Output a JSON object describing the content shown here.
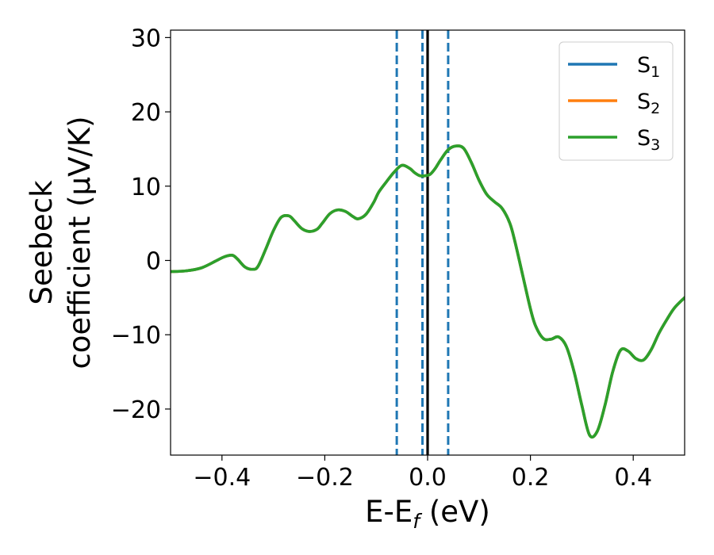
{
  "chart_data": {
    "type": "line",
    "xlabel_main": "E-E",
    "xlabel_sub": "f",
    "xlabel_unit": " (eV)",
    "ylabel_line1": "Seebeck",
    "ylabel_line2": "coefficient  (μV/K)",
    "xlim": [
      -0.5,
      0.5
    ],
    "ylim": [
      -26.2,
      31.0
    ],
    "xticks": [
      -0.4,
      -0.2,
      0.0,
      0.2,
      0.4
    ],
    "xtick_labels": [
      "−0.4",
      "−0.2",
      "0.0",
      "0.2",
      "0.4"
    ],
    "yticks": [
      -20,
      -10,
      0,
      10,
      20,
      30
    ],
    "ytick_labels": [
      "−20",
      "−10",
      "0",
      "10",
      "20",
      "30"
    ],
    "grid": false,
    "legend_position": "top-right",
    "vlines": [
      {
        "x": -0.06,
        "style": "dashed",
        "color": "#1f77b4"
      },
      {
        "x": -0.01,
        "style": "dashed",
        "color": "#1f77b4"
      },
      {
        "x": 0.04,
        "style": "dashed",
        "color": "#1f77b4"
      },
      {
        "x": 0.0,
        "style": "solid",
        "color": "#000000"
      }
    ],
    "series": [
      {
        "name": "S",
        "subscript": "1",
        "color": "#1f77b4"
      },
      {
        "name": "S",
        "subscript": "2",
        "color": "#ff7f0e"
      },
      {
        "name": "S",
        "subscript": "3",
        "color": "#2ca02c"
      }
    ],
    "x": [
      -0.5,
      -0.47,
      -0.44,
      -0.41,
      -0.395,
      -0.38,
      -0.37,
      -0.355,
      -0.34,
      -0.33,
      -0.315,
      -0.3,
      -0.285,
      -0.27,
      -0.26,
      -0.245,
      -0.23,
      -0.215,
      -0.205,
      -0.19,
      -0.175,
      -0.16,
      -0.145,
      -0.135,
      -0.12,
      -0.105,
      -0.095,
      -0.08,
      -0.065,
      -0.05,
      -0.035,
      -0.025,
      -0.015,
      -0.005,
      0.005,
      0.015,
      0.025,
      0.04,
      0.055,
      0.07,
      0.085,
      0.1,
      0.115,
      0.13,
      0.145,
      0.16,
      0.17,
      0.185,
      0.2,
      0.21,
      0.225,
      0.24,
      0.255,
      0.27,
      0.285,
      0.3,
      0.315,
      0.33,
      0.345,
      0.36,
      0.375,
      0.39,
      0.405,
      0.42,
      0.435,
      0.45,
      0.465,
      0.48,
      0.5
    ],
    "y": [
      -1.5,
      -1.4,
      -1.0,
      0.0,
      0.5,
      0.7,
      0.2,
      -0.9,
      -1.2,
      -0.8,
      1.5,
      4.0,
      5.8,
      6.0,
      5.4,
      4.3,
      3.9,
      4.2,
      5.0,
      6.3,
      6.8,
      6.6,
      5.9,
      5.6,
      6.2,
      7.8,
      9.2,
      10.6,
      11.9,
      12.8,
      12.4,
      11.8,
      11.4,
      11.4,
      11.6,
      12.4,
      13.5,
      14.9,
      15.4,
      15.1,
      13.2,
      10.8,
      8.9,
      7.9,
      7.0,
      5.0,
      2.5,
      -2.0,
      -6.5,
      -8.8,
      -10.5,
      -10.6,
      -10.3,
      -11.6,
      -15.0,
      -19.5,
      -23.5,
      -23.0,
      -19.5,
      -15.0,
      -12.1,
      -12.2,
      -13.2,
      -13.4,
      -12.0,
      -9.8,
      -8.0,
      -6.4,
      -5.0
    ]
  }
}
